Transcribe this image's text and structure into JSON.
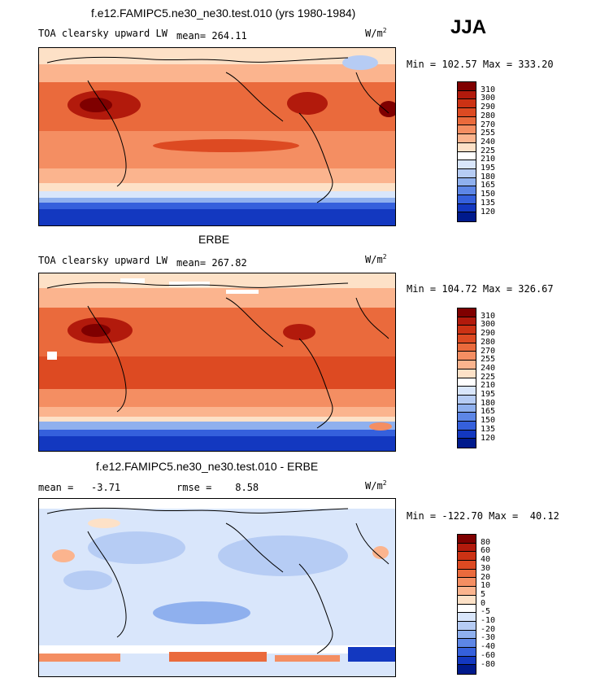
{
  "season": "JJA",
  "units": "W/m",
  "units_sup": "2",
  "panels": [
    {
      "title": "f.e12.FAMIPC5.ne30_ne30.test.010 (yrs 1980-1984)",
      "variable": "TOA clearsky upward LW",
      "stat": "mean= 264.11",
      "minmax": "Min = 102.57 Max = 333.20",
      "ticks": [
        "310",
        "300",
        "290",
        "280",
        "270",
        "255",
        "240",
        "225",
        "210",
        "195",
        "180",
        "165",
        "150",
        "135",
        "120"
      ],
      "colors": [
        "#7f0000",
        "#b21a0c",
        "#cc3214",
        "#dd4a22",
        "#ea6a3c",
        "#f48e62",
        "#fbb48e",
        "#fde1c7",
        "#ffffff",
        "#d9e6fb",
        "#b6ccf4",
        "#8fb0ee",
        "#5d86e6",
        "#3560dc",
        "#1338c0",
        "#001a8c"
      ]
    },
    {
      "title": "ERBE",
      "variable": "TOA clearsky upward LW",
      "stat": "mean= 267.82",
      "minmax": "Min = 104.72 Max = 326.67",
      "ticks": [
        "310",
        "300",
        "290",
        "280",
        "270",
        "255",
        "240",
        "225",
        "210",
        "195",
        "180",
        "165",
        "150",
        "135",
        "120"
      ],
      "colors": [
        "#7f0000",
        "#b21a0c",
        "#cc3214",
        "#dd4a22",
        "#ea6a3c",
        "#f48e62",
        "#fbb48e",
        "#fde1c7",
        "#ffffff",
        "#d9e6fb",
        "#b6ccf4",
        "#8fb0ee",
        "#5d86e6",
        "#3560dc",
        "#1338c0",
        "#001a8c"
      ]
    },
    {
      "title": "f.e12.FAMIPC5.ne30_ne30.test.010 - ERBE",
      "stat_mean": "mean =   -3.71",
      "stat_rmse": "rmse =    8.58",
      "minmax": "Min = -122.70 Max =  40.12",
      "ticks": [
        "80",
        "60",
        "40",
        "30",
        "20",
        "10",
        "5",
        "0",
        "-5",
        "-10",
        "-20",
        "-30",
        "-40",
        "-60",
        "-80"
      ],
      "colors": [
        "#7f0000",
        "#b21a0c",
        "#cc3214",
        "#dd4a22",
        "#ea6a3c",
        "#f48e62",
        "#fbb48e",
        "#fde1c7",
        "#ffffff",
        "#d9e6fb",
        "#b6ccf4",
        "#8fb0ee",
        "#5d86e6",
        "#3560dc",
        "#1338c0",
        "#001a8c"
      ]
    }
  ]
}
